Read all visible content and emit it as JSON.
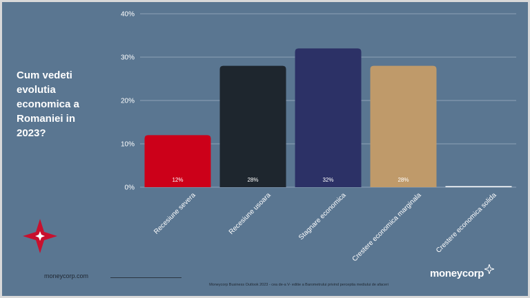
{
  "slide": {
    "question": "Cum vedeti\nevolutia\neconomica a\nRomaniei in\n2023?",
    "site_url": "moneycorp.com",
    "footer_note": "Moneycorp Business Outlook 2023 - cea de-a V- editie a Barometrului privind perceptia mediului de afaceri",
    "brand": "moneycorp",
    "star_icon": "red-star-logo-icon",
    "brand_icon": "sparkle-star-icon"
  },
  "chart_data": {
    "type": "bar",
    "categories": [
      "Recesiune severa",
      "Recesiune usoara",
      "Stagnare economica",
      "Crestere economica marginala",
      "Crestere economica solida"
    ],
    "values": [
      12,
      28,
      32,
      28,
      0
    ],
    "data_labels": [
      "12%",
      "28%",
      "32%",
      "28%",
      ""
    ],
    "colors": [
      "#cc0019",
      "#1e262e",
      "#2c3166",
      "#bf9a6a",
      "#ffffff"
    ],
    "yticks": [
      "0%",
      "10%",
      "20%",
      "30%",
      "40%"
    ],
    "ylim": [
      0,
      40
    ],
    "grid": true,
    "gridline_color": "#8ea3b6",
    "legend": "none"
  }
}
